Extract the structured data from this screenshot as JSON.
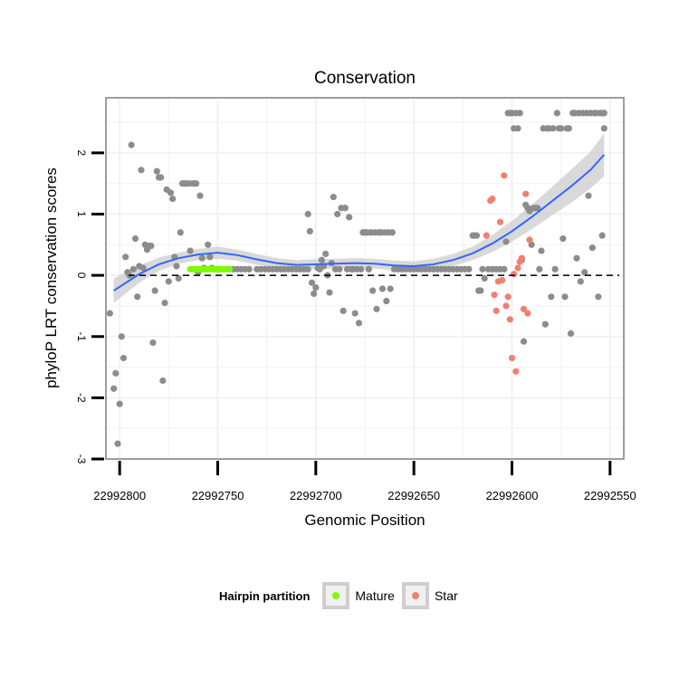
{
  "chart_data": {
    "type": "scatter",
    "title": "Conservation",
    "xlabel": "Genomic Position",
    "ylabel": "phyloP LRT conservation scores",
    "x_reversed": true,
    "xlim": [
      22992807,
      22992543
    ],
    "ylim": [
      -3,
      2.9
    ],
    "x_ticks": [
      22992800,
      22992750,
      22992700,
      22992650,
      22992600,
      22992550
    ],
    "x_tick_labels": [
      "22992800",
      "22992750",
      "22992700",
      "22992650",
      "22992600",
      "22992550"
    ],
    "y_ticks": [
      -3,
      -2,
      -1,
      0,
      1,
      2
    ],
    "y_tick_labels": [
      "-3",
      "-2",
      "-1",
      "0",
      "1",
      "2"
    ],
    "reference_line": {
      "y": 0,
      "style": "dashed",
      "color": "#000000"
    },
    "colors": {
      "other": "#8c8c8c",
      "mature": "#7cfc00",
      "star": "#f08070",
      "smooth": "#3366ff",
      "ribbon": "#cccccc",
      "panel_border": "#7f7f7f",
      "grid": "#f2f2f2"
    },
    "legend": {
      "title": "Hairpin partition",
      "position": "bottom",
      "entries": [
        {
          "label": "Mature",
          "color": "#7cfc00"
        },
        {
          "label": "Star",
          "color": "#f08070"
        }
      ]
    },
    "series": [
      {
        "name": "Other",
        "points": [
          [
            22992805,
            -0.62
          ],
          [
            22992803,
            -1.85
          ],
          [
            22992802,
            -1.6
          ],
          [
            22992801,
            -2.75
          ],
          [
            22992800,
            -2.1
          ],
          [
            22992799,
            -1.0
          ],
          [
            22992798,
            -1.35
          ],
          [
            22992797,
            0.3
          ],
          [
            22992796,
            0.05
          ],
          [
            22992795,
            0.0
          ],
          [
            22992794,
            2.13
          ],
          [
            22992793,
            0.1
          ],
          [
            22992792,
            0.6
          ],
          [
            22992791,
            -0.35
          ],
          [
            22992790,
            0.15
          ],
          [
            22992789,
            1.72
          ],
          [
            22992788,
            0.12
          ],
          [
            22992787,
            0.5
          ],
          [
            22992786,
            0.42
          ],
          [
            22992785,
            0.48
          ],
          [
            22992784,
            0.48
          ],
          [
            22992783,
            -1.1
          ],
          [
            22992782,
            -0.25
          ],
          [
            22992781,
            1.7
          ],
          [
            22992780,
            1.6
          ],
          [
            22992779,
            1.6
          ],
          [
            22992778,
            -1.72
          ],
          [
            22992777,
            -0.45
          ],
          [
            22992776,
            1.4
          ],
          [
            22992775,
            -0.1
          ],
          [
            22992774,
            1.35
          ],
          [
            22992773,
            1.25
          ],
          [
            22992772,
            0.3
          ],
          [
            22992771,
            0.15
          ],
          [
            22992770,
            -0.05
          ],
          [
            22992769,
            0.7
          ],
          [
            22992768,
            1.5
          ],
          [
            22992767,
            1.5
          ],
          [
            22992766,
            1.5
          ],
          [
            22992765,
            1.5
          ],
          [
            22992764,
            0.4
          ],
          [
            22992763,
            1.5
          ],
          [
            22992762,
            1.5
          ],
          [
            22992761,
            1.5
          ],
          [
            22992760,
            0.05
          ],
          [
            22992759,
            1.3
          ],
          [
            22992758,
            0.28
          ],
          [
            22992757,
            0.12
          ],
          [
            22992755,
            0.5
          ],
          [
            22992754,
            0.3
          ],
          [
            22992753,
            0.12
          ],
          [
            22992752,
            0.1
          ],
          [
            22992750,
            0.1
          ],
          [
            22992748,
            0.1
          ],
          [
            22992746,
            0.1
          ],
          [
            22992744,
            0.1
          ],
          [
            22992742,
            0.1
          ],
          [
            22992740,
            0.1
          ],
          [
            22992738,
            0.1
          ],
          [
            22992736,
            0.1
          ],
          [
            22992734,
            0.1
          ],
          [
            22992730,
            0.1
          ],
          [
            22992728,
            0.1
          ],
          [
            22992726,
            0.1
          ],
          [
            22992724,
            0.1
          ],
          [
            22992722,
            0.1
          ],
          [
            22992720,
            0.1
          ],
          [
            22992718,
            0.1
          ],
          [
            22992716,
            0.1
          ],
          [
            22992714,
            0.1
          ],
          [
            22992712,
            0.1
          ],
          [
            22992710,
            0.1
          ],
          [
            22992708,
            0.1
          ],
          [
            22992706,
            0.1
          ],
          [
            22992704,
            0.1
          ],
          [
            22992704,
            1.0
          ],
          [
            22992703,
            0.72
          ],
          [
            22992702,
            -0.12
          ],
          [
            22992701,
            -0.3
          ],
          [
            22992700,
            -0.2
          ],
          [
            22992699,
            0.12
          ],
          [
            22992698,
            0.1
          ],
          [
            22992697,
            0.25
          ],
          [
            22992696,
            0.15
          ],
          [
            22992695,
            0.35
          ],
          [
            22992694,
            0.0
          ],
          [
            22992693,
            -0.28
          ],
          [
            22992692,
            0.2
          ],
          [
            22992691,
            1.28
          ],
          [
            22992690,
            0.1
          ],
          [
            22992689,
            1.0
          ],
          [
            22992688,
            0.1
          ],
          [
            22992687,
            1.1
          ],
          [
            22992686,
            -0.58
          ],
          [
            22992685,
            1.1
          ],
          [
            22992684,
            0.1
          ],
          [
            22992683,
            0.95
          ],
          [
            22992682,
            0.1
          ],
          [
            22992681,
            0.1
          ],
          [
            22992680,
            -0.62
          ],
          [
            22992679,
            0.1
          ],
          [
            22992678,
            -0.78
          ],
          [
            22992677,
            0.1
          ],
          [
            22992676,
            0.7
          ],
          [
            22992675,
            0.7
          ],
          [
            22992674,
            0.7
          ],
          [
            22992673,
            0.1
          ],
          [
            22992672,
            0.7
          ],
          [
            22992671,
            -0.25
          ],
          [
            22992670,
            0.7
          ],
          [
            22992669,
            -0.55
          ],
          [
            22992668,
            0.7
          ],
          [
            22992667,
            0.7
          ],
          [
            22992666,
            -0.22
          ],
          [
            22992665,
            0.7
          ],
          [
            22992664,
            -0.42
          ],
          [
            22992663,
            0.7
          ],
          [
            22992662,
            -0.22
          ],
          [
            22992661,
            0.7
          ],
          [
            22992660,
            0.1
          ],
          [
            22992658,
            0.1
          ],
          [
            22992656,
            0.1
          ],
          [
            22992654,
            0.1
          ],
          [
            22992652,
            0.1
          ],
          [
            22992650,
            0.1
          ],
          [
            22992648,
            0.1
          ],
          [
            22992646,
            0.1
          ],
          [
            22992644,
            0.1
          ],
          [
            22992642,
            0.1
          ],
          [
            22992640,
            0.1
          ],
          [
            22992638,
            0.1
          ],
          [
            22992636,
            0.1
          ],
          [
            22992634,
            0.1
          ],
          [
            22992632,
            0.1
          ],
          [
            22992630,
            0.1
          ],
          [
            22992628,
            0.1
          ],
          [
            22992626,
            0.1
          ],
          [
            22992624,
            0.1
          ],
          [
            22992622,
            0.1
          ],
          [
            22992620,
            0.65
          ],
          [
            22992619,
            0.65
          ],
          [
            22992618,
            0.65
          ],
          [
            22992617,
            -0.25
          ],
          [
            22992616,
            -0.25
          ],
          [
            22992615,
            0.1
          ],
          [
            22992614,
            -0.05
          ],
          [
            22992612,
            0.1
          ],
          [
            22992610,
            0.1
          ],
          [
            22992608,
            0.1
          ],
          [
            22992606,
            0.1
          ],
          [
            22992604,
            0.1
          ],
          [
            22992603,
            0.55
          ],
          [
            22992602,
            2.65
          ],
          [
            22992601,
            2.65
          ],
          [
            22992600,
            2.65
          ],
          [
            22992599,
            2.4
          ],
          [
            22992598,
            2.65
          ],
          [
            22992597,
            2.4
          ],
          [
            22992596,
            2.65
          ],
          [
            22992595,
            0.25
          ],
          [
            22992594,
            -1.08
          ],
          [
            22992593,
            1.15
          ],
          [
            22992592,
            1.1
          ],
          [
            22992591,
            1.05
          ],
          [
            22992590,
            0.5
          ],
          [
            22992589,
            1.1
          ],
          [
            22992588,
            1.1
          ],
          [
            22992587,
            1.1
          ],
          [
            22992586,
            0.1
          ],
          [
            22992585,
            0.4
          ],
          [
            22992584,
            2.4
          ],
          [
            22992583,
            -0.8
          ],
          [
            22992582,
            2.4
          ],
          [
            22992581,
            2.4
          ],
          [
            22992580,
            -0.35
          ],
          [
            22992579,
            2.4
          ],
          [
            22992578,
            0.1
          ],
          [
            22992577,
            2.65
          ],
          [
            22992576,
            2.4
          ],
          [
            22992575,
            2.4
          ],
          [
            22992574,
            0.6
          ],
          [
            22992573,
            -0.35
          ],
          [
            22992572,
            2.4
          ],
          [
            22992571,
            2.4
          ],
          [
            22992570,
            -0.95
          ],
          [
            22992569,
            2.65
          ],
          [
            22992568,
            2.65
          ],
          [
            22992567,
            0.28
          ],
          [
            22992566,
            2.65
          ],
          [
            22992565,
            -0.1
          ],
          [
            22992564,
            2.65
          ],
          [
            22992563,
            0.05
          ],
          [
            22992562,
            2.65
          ],
          [
            22992561,
            1.3
          ],
          [
            22992560,
            2.65
          ],
          [
            22992559,
            0.45
          ],
          [
            22992558,
            2.65
          ],
          [
            22992557,
            2.65
          ],
          [
            22992556,
            -0.35
          ],
          [
            22992555,
            2.65
          ],
          [
            22992554,
            2.65
          ],
          [
            22992554,
            0.65
          ],
          [
            22992553,
            2.65
          ],
          [
            22992553,
            2.4
          ]
        ]
      },
      {
        "name": "Mature",
        "points": [
          [
            22992764,
            0.1
          ],
          [
            22992763,
            0.1
          ],
          [
            22992762,
            0.1
          ],
          [
            22992761,
            0.1
          ],
          [
            22992760,
            0.1
          ],
          [
            22992759,
            0.1
          ],
          [
            22992758,
            0.1
          ],
          [
            22992757,
            0.1
          ],
          [
            22992756,
            0.1
          ],
          [
            22992755,
            0.1
          ],
          [
            22992754,
            0.1
          ],
          [
            22992753,
            0.1
          ],
          [
            22992752,
            0.1
          ],
          [
            22992751,
            0.1
          ],
          [
            22992750,
            0.1
          ],
          [
            22992749,
            0.1
          ],
          [
            22992748,
            0.1
          ],
          [
            22992747,
            0.1
          ],
          [
            22992746,
            0.1
          ],
          [
            22992745,
            0.1
          ],
          [
            22992744,
            0.1
          ]
        ]
      },
      {
        "name": "Star",
        "points": [
          [
            22992613,
            0.65
          ],
          [
            22992611,
            1.22
          ],
          [
            22992610,
            1.25
          ],
          [
            22992609,
            -0.32
          ],
          [
            22992608,
            -0.58
          ],
          [
            22992607,
            -0.1
          ],
          [
            22992606,
            0.87
          ],
          [
            22992605,
            -0.08
          ],
          [
            22992604,
            1.63
          ],
          [
            22992603,
            -0.5
          ],
          [
            22992602,
            -0.35
          ],
          [
            22992601,
            -0.72
          ],
          [
            22992600,
            -1.35
          ],
          [
            22992599,
            0.02
          ],
          [
            22992598,
            -1.57
          ],
          [
            22992597,
            0.12
          ],
          [
            22992596,
            0.22
          ],
          [
            22992595,
            0.28
          ],
          [
            22992594,
            -0.55
          ],
          [
            22992593,
            1.33
          ],
          [
            22992592,
            -0.62
          ],
          [
            22992591,
            0.58
          ]
        ]
      }
    ],
    "smooth_fit": {
      "method": "loess",
      "x": [
        22992803,
        22992790,
        22992780,
        22992770,
        22992760,
        22992750,
        22992740,
        22992730,
        22992720,
        22992710,
        22992700,
        22992690,
        22992680,
        22992670,
        22992660,
        22992650,
        22992640,
        22992630,
        22992620,
        22992610,
        22992600,
        22992590,
        22992580,
        22992570,
        22992560,
        22992553
      ],
      "y": [
        -0.25,
        0.02,
        0.18,
        0.28,
        0.34,
        0.37,
        0.33,
        0.26,
        0.2,
        0.17,
        0.18,
        0.19,
        0.2,
        0.19,
        0.16,
        0.15,
        0.18,
        0.25,
        0.36,
        0.52,
        0.72,
        0.95,
        1.2,
        1.45,
        1.72,
        1.97
      ],
      "lower": [
        -0.45,
        -0.12,
        0.07,
        0.19,
        0.25,
        0.27,
        0.24,
        0.17,
        0.12,
        0.09,
        0.1,
        0.11,
        0.12,
        0.11,
        0.08,
        0.07,
        0.09,
        0.15,
        0.25,
        0.38,
        0.55,
        0.75,
        0.97,
        1.18,
        1.42,
        1.62
      ],
      "upper": [
        -0.05,
        0.16,
        0.29,
        0.37,
        0.43,
        0.47,
        0.42,
        0.35,
        0.28,
        0.25,
        0.26,
        0.27,
        0.28,
        0.27,
        0.24,
        0.23,
        0.27,
        0.35,
        0.47,
        0.66,
        0.89,
        1.15,
        1.43,
        1.72,
        2.02,
        2.32
      ]
    }
  }
}
